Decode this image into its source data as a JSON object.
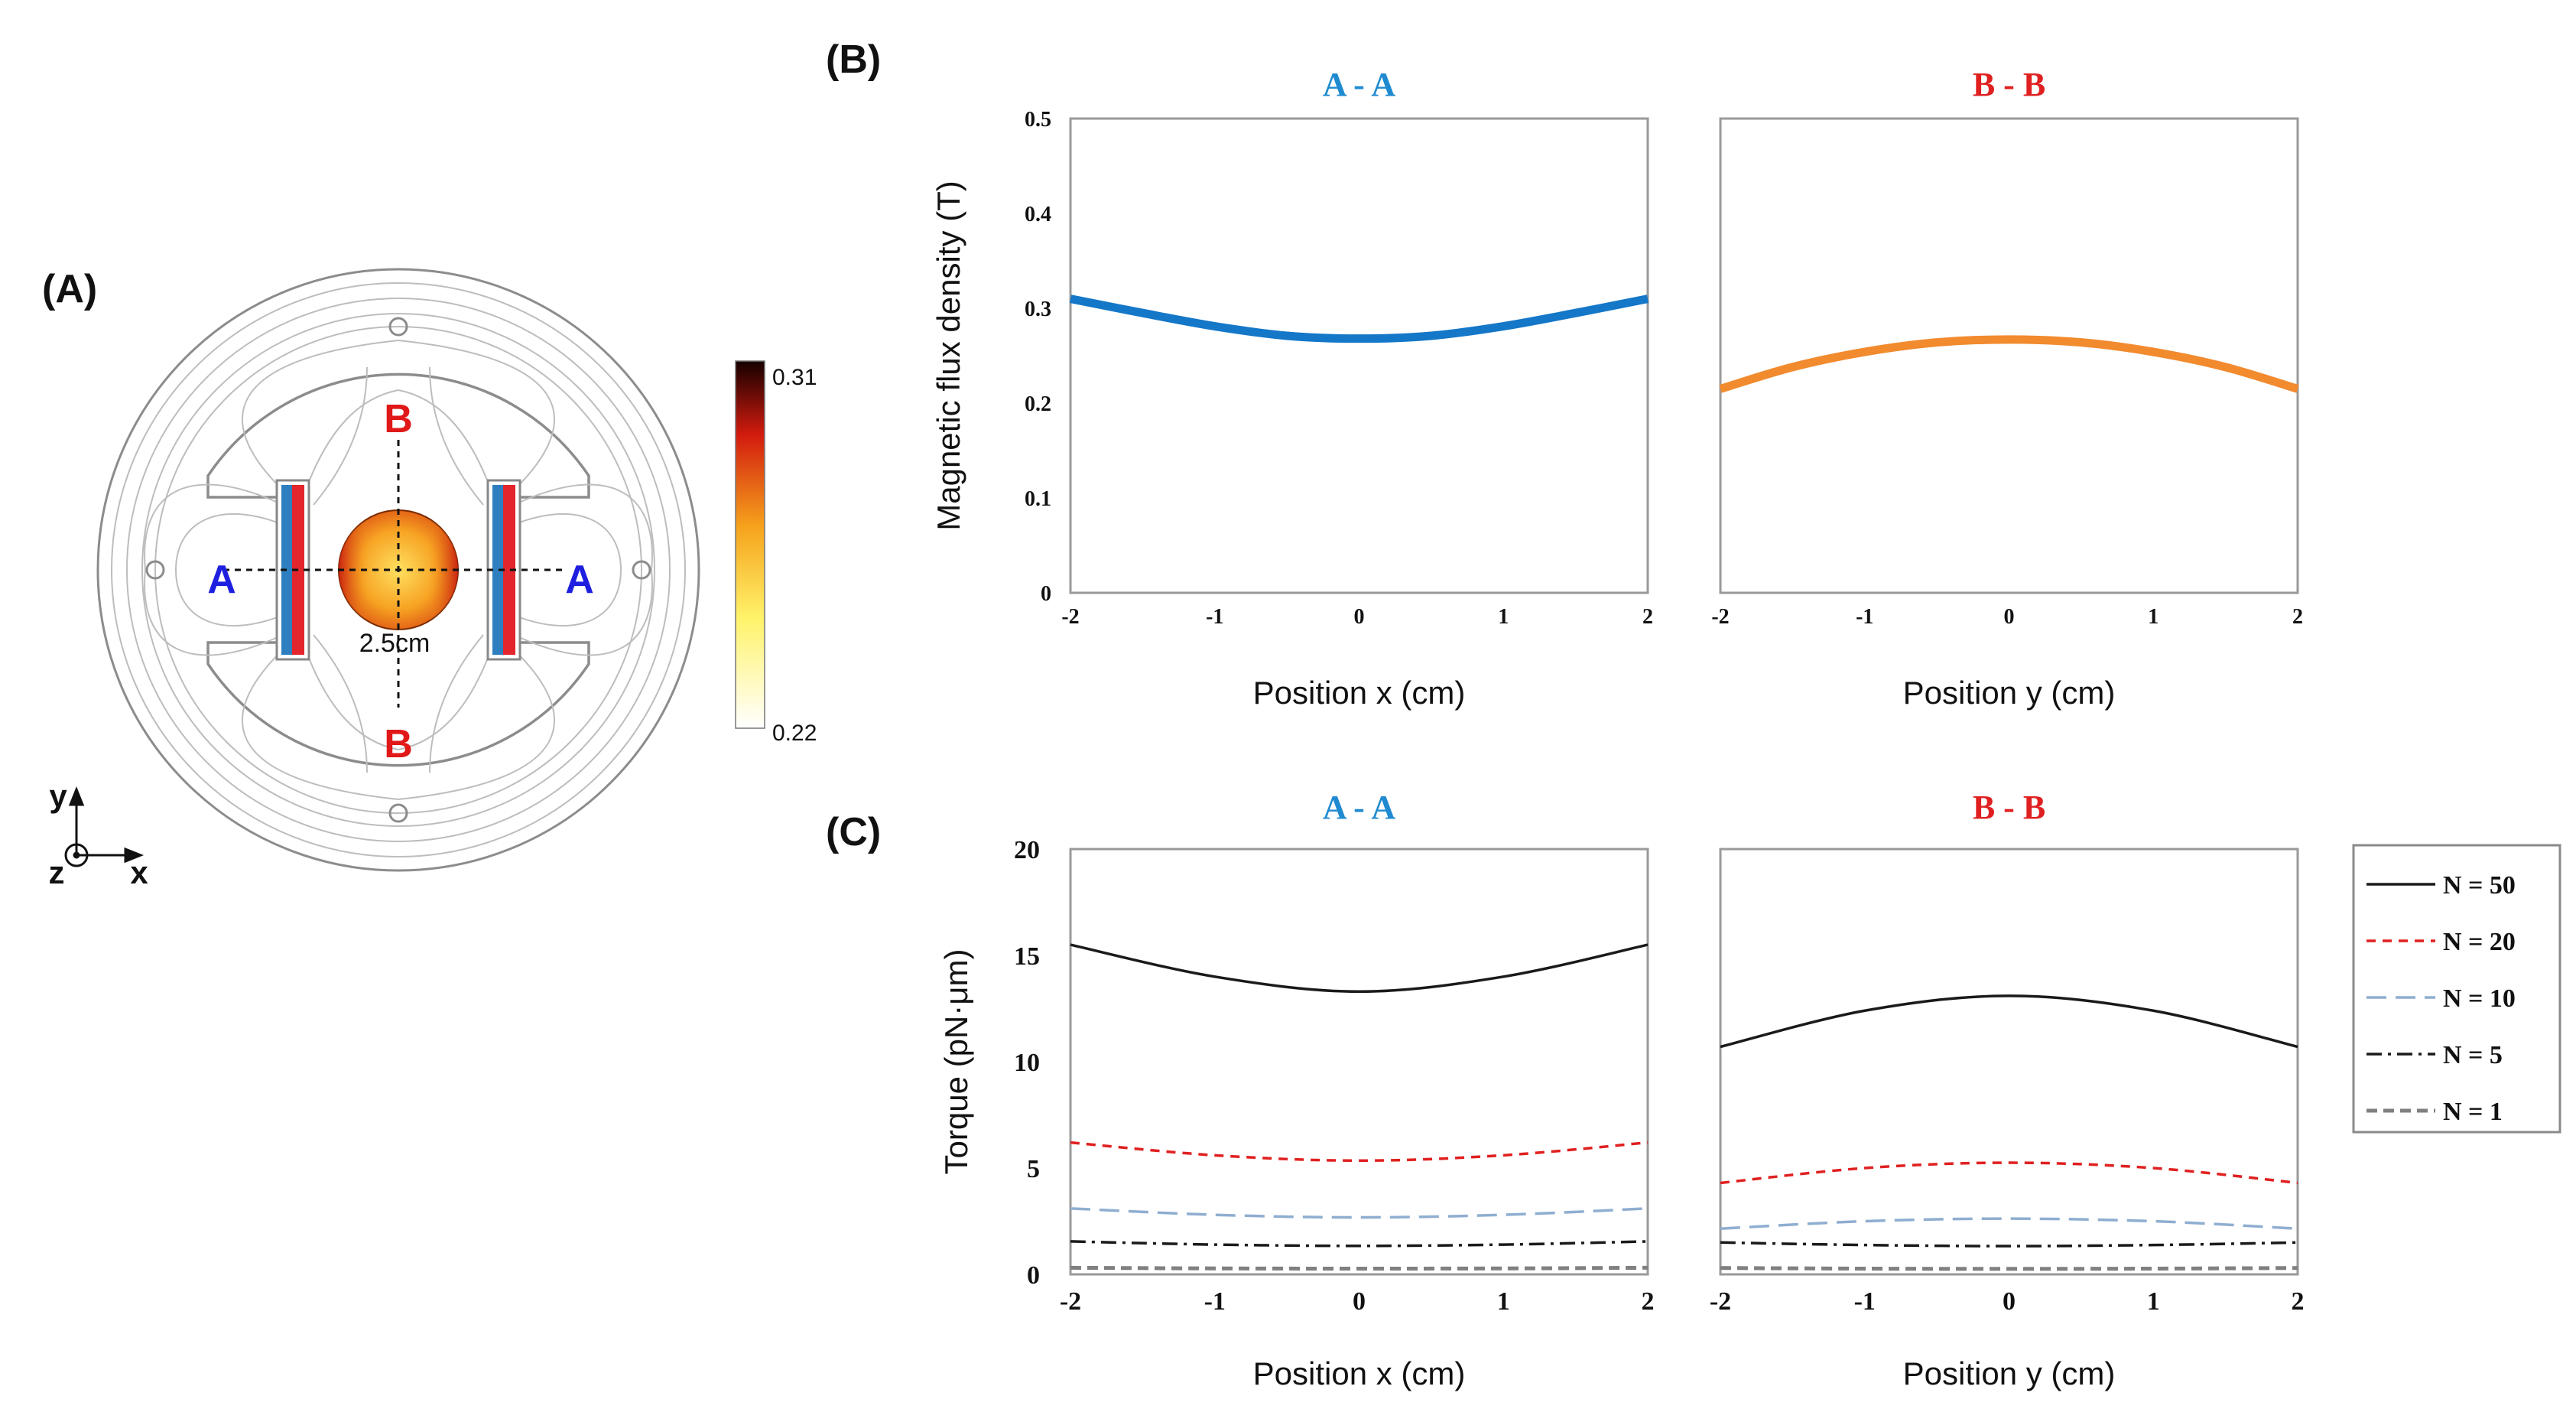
{
  "panels": {
    "a": {
      "label": "(A)",
      "colorbar": {
        "max": "0.31",
        "min": "0.22"
      },
      "marker_a": "A",
      "marker_b": "B",
      "diameter": "2.5cm",
      "axes": {
        "y": "y",
        "x": "x",
        "z": "z"
      },
      "colors": {
        "marker_a": "#1f1fe0",
        "marker_b": "#e01818"
      }
    },
    "b": {
      "label": "(B)"
    },
    "c": {
      "label": "(C)"
    }
  },
  "legend": {
    "entries": [
      "N = 50",
      "N = 20",
      "N = 10",
      "N = 5",
      "N = 1"
    ]
  },
  "chart_data": [
    {
      "id": "b-left",
      "type": "line",
      "title": "A - A",
      "title_color": "#1f8ad0",
      "xlabel": "Position x (cm)",
      "ylabel": "Magnetic flux density (T)",
      "xlim": [
        -2,
        2
      ],
      "ylim": [
        0,
        0.5
      ],
      "xticks": [
        "-2",
        "-1",
        "0",
        "1",
        "2"
      ],
      "yticks": [
        "0",
        "0.1",
        "0.2",
        "0.3",
        "0.4",
        "0.5"
      ],
      "series": [
        {
          "name": "A - A",
          "color": "#1477c8",
          "style": "solid",
          "x": [
            -2,
            -1.5,
            -1,
            -0.5,
            0,
            0.5,
            1,
            1.5,
            2
          ],
          "y": [
            0.31,
            0.295,
            0.281,
            0.271,
            0.268,
            0.271,
            0.281,
            0.295,
            0.31
          ]
        }
      ]
    },
    {
      "id": "b-right",
      "type": "line",
      "title": "B - B",
      "title_color": "#e02020",
      "xlabel": "Position y (cm)",
      "ylabel": "",
      "xlim": [
        -2,
        2
      ],
      "ylim": [
        0,
        0.5
      ],
      "xticks": [
        "-2",
        "-1",
        "0",
        "1",
        "2"
      ],
      "yticks": [],
      "series": [
        {
          "name": "B - B",
          "color": "#f28a2e",
          "style": "solid",
          "x": [
            -2,
            -1.5,
            -1,
            -0.5,
            0,
            0.5,
            1,
            1.5,
            2
          ],
          "y": [
            0.215,
            0.238,
            0.254,
            0.264,
            0.267,
            0.264,
            0.254,
            0.238,
            0.215
          ]
        }
      ]
    },
    {
      "id": "c-left",
      "type": "line",
      "title": "A - A",
      "title_color": "#1f8ad0",
      "xlabel": "Position x (cm)",
      "ylabel": "Torque (pN·μm)",
      "xlim": [
        -2,
        2
      ],
      "ylim": [
        0,
        20
      ],
      "xticks": [
        "-2",
        "-1",
        "0",
        "1",
        "2"
      ],
      "yticks": [
        "0",
        "5",
        "10",
        "15",
        "20"
      ],
      "series": [
        {
          "name": "N = 50",
          "color": "#1a1a1a",
          "style": "solid",
          "x": [
            -2,
            -1,
            0,
            1,
            2
          ],
          "y": [
            15.5,
            14.0,
            13.3,
            14.0,
            15.5
          ]
        },
        {
          "name": "N = 20",
          "color": "#e02020",
          "style": "dash",
          "x": [
            -2,
            -1,
            0,
            1,
            2
          ],
          "y": [
            6.2,
            5.6,
            5.35,
            5.6,
            6.2
          ]
        },
        {
          "name": "N = 10",
          "color": "#8faed0",
          "style": "longdash",
          "x": [
            -2,
            -1,
            0,
            1,
            2
          ],
          "y": [
            3.1,
            2.8,
            2.68,
            2.8,
            3.1
          ]
        },
        {
          "name": "N = 5",
          "color": "#1a1a1a",
          "style": "dashdot",
          "x": [
            -2,
            -1,
            0,
            1,
            2
          ],
          "y": [
            1.55,
            1.4,
            1.34,
            1.4,
            1.55
          ]
        },
        {
          "name": "N = 1",
          "color": "#808080",
          "style": "dashthick",
          "x": [
            -2,
            -1,
            0,
            1,
            2
          ],
          "y": [
            0.31,
            0.28,
            0.27,
            0.28,
            0.31
          ]
        }
      ]
    },
    {
      "id": "c-right",
      "type": "line",
      "title": "B - B",
      "title_color": "#e02020",
      "xlabel": "Position y (cm)",
      "ylabel": "",
      "xlim": [
        -2,
        2
      ],
      "ylim": [
        0,
        20
      ],
      "xticks": [
        "-2",
        "-1",
        "0",
        "1",
        "2"
      ],
      "yticks": [],
      "series": [
        {
          "name": "N = 50",
          "color": "#1a1a1a",
          "style": "solid",
          "x": [
            -2,
            -1,
            0,
            1,
            2
          ],
          "y": [
            10.7,
            12.4,
            13.1,
            12.4,
            10.7
          ]
        },
        {
          "name": "N = 20",
          "color": "#e02020",
          "style": "dash",
          "x": [
            -2,
            -1,
            0,
            1,
            2
          ],
          "y": [
            4.3,
            5.0,
            5.25,
            5.0,
            4.3
          ]
        },
        {
          "name": "N = 10",
          "color": "#8faed0",
          "style": "longdash",
          "x": [
            -2,
            -1,
            0,
            1,
            2
          ],
          "y": [
            2.15,
            2.5,
            2.62,
            2.5,
            2.15
          ]
        },
        {
          "name": "N = 5",
          "color": "#1a1a1a",
          "style": "dashdot",
          "x": [
            -2,
            -1,
            0,
            1,
            2
          ],
          "y": [
            1.5,
            1.38,
            1.33,
            1.38,
            1.5
          ]
        },
        {
          "name": "N = 1",
          "color": "#808080",
          "style": "dashthick",
          "x": [
            -2,
            -1,
            0,
            1,
            2
          ],
          "y": [
            0.3,
            0.27,
            0.26,
            0.27,
            0.3
          ]
        }
      ]
    }
  ]
}
